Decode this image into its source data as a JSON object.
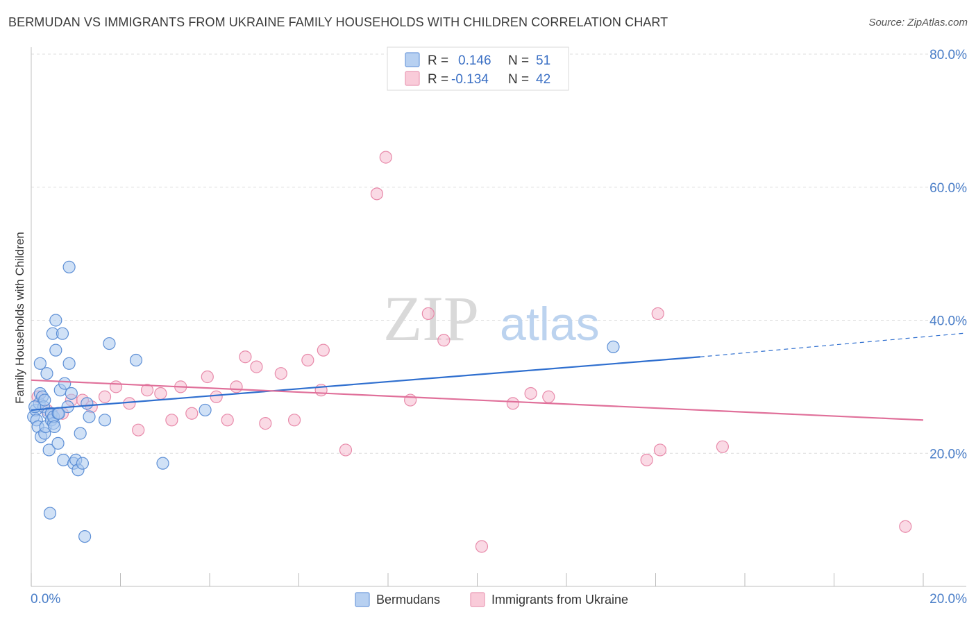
{
  "title": "BERMUDAN VS IMMIGRANTS FROM UKRAINE FAMILY HOUSEHOLDS WITH CHILDREN CORRELATION CHART",
  "source": "Source: ZipAtlas.com",
  "watermark": {
    "zip": "ZIP",
    "atlas": "atlas"
  },
  "legend": {
    "r_label": "R =",
    "n_label": "N =",
    "series": [
      {
        "r": "0.146",
        "n": "51"
      },
      {
        "r": "-0.134",
        "n": "42"
      }
    ]
  },
  "bottom_legend": [
    "Bermudans",
    "Immigrants from Ukraine"
  ],
  "chart_data": {
    "type": "scatter",
    "title": "BERMUDAN VS IMMIGRANTS FROM UKRAINE FAMILY HOUSEHOLDS WITH CHILDREN CORRELATION CHART",
    "xlabel": "",
    "ylabel": "Family Households with Children",
    "xlim": [
      0,
      20
    ],
    "ylim": [
      0,
      80
    ],
    "x_tick_labels": [
      "0.0%",
      "20.0%"
    ],
    "y_tick_labels": [
      "20.0%",
      "40.0%",
      "60.0%",
      "80.0%"
    ],
    "y_ticks": [
      20,
      40,
      60,
      80
    ],
    "grid": true,
    "colors": {
      "bermudans_fill": "#a9c8ee",
      "bermudans_stroke": "#5d8fd6",
      "bermudans_line": "#2f6fcf",
      "ukraine_fill": "#f6bcd0",
      "ukraine_stroke": "#e88aaa",
      "ukraine_line": "#e0709a",
      "tick": "#4a7ec8",
      "grid": "#dddddd"
    },
    "series": [
      {
        "name": "Bermudans",
        "trend": {
          "x_start": 0,
          "y_start": 26.5,
          "x_solid_end": 15.0,
          "y_solid_end": 34.5,
          "x_end": 20,
          "y_end": 37.5
        },
        "points": [
          [
            0.05,
            25.5
          ],
          [
            0.1,
            26.5
          ],
          [
            0.12,
            25.0
          ],
          [
            0.15,
            24.0
          ],
          [
            0.18,
            27.5
          ],
          [
            0.2,
            29.0
          ],
          [
            0.2,
            33.5
          ],
          [
            0.22,
            22.5
          ],
          [
            0.25,
            28.5
          ],
          [
            0.28,
            27.0
          ],
          [
            0.3,
            23.0
          ],
          [
            0.32,
            24.0
          ],
          [
            0.35,
            32.0
          ],
          [
            0.38,
            26.0
          ],
          [
            0.4,
            20.5
          ],
          [
            0.42,
            11.0
          ],
          [
            0.45,
            26.0
          ],
          [
            0.45,
            25.0
          ],
          [
            0.48,
            38.0
          ],
          [
            0.5,
            24.5
          ],
          [
            0.5,
            25.5
          ],
          [
            0.52,
            24.0
          ],
          [
            0.55,
            40.0
          ],
          [
            0.55,
            35.5
          ],
          [
            0.6,
            26.0
          ],
          [
            0.6,
            21.5
          ],
          [
            0.62,
            26.0
          ],
          [
            0.65,
            29.5
          ],
          [
            0.7,
            38.0
          ],
          [
            0.72,
            19.0
          ],
          [
            0.75,
            30.5
          ],
          [
            0.82,
            27.0
          ],
          [
            0.85,
            33.5
          ],
          [
            0.85,
            48.0
          ],
          [
            0.9,
            29.0
          ],
          [
            0.95,
            18.5
          ],
          [
            1.0,
            19.0
          ],
          [
            1.05,
            17.5
          ],
          [
            1.1,
            23.0
          ],
          [
            1.15,
            18.5
          ],
          [
            1.2,
            7.5
          ],
          [
            1.25,
            27.5
          ],
          [
            1.3,
            25.5
          ],
          [
            1.65,
            25.0
          ],
          [
            1.75,
            36.5
          ],
          [
            2.35,
            34.0
          ],
          [
            2.95,
            18.5
          ],
          [
            3.9,
            26.5
          ],
          [
            13.05,
            36.0
          ],
          [
            0.3,
            28.0
          ],
          [
            0.08,
            27.0
          ]
        ]
      },
      {
        "name": "Immigrants from Ukraine",
        "trend": {
          "x_start": 0,
          "y_start": 31.0,
          "x_end": 20,
          "y_end": 25.0
        },
        "points": [
          [
            0.15,
            28.5
          ],
          [
            0.35,
            26.5
          ],
          [
            0.7,
            26.0
          ],
          [
            0.9,
            28.0
          ],
          [
            1.15,
            28.0
          ],
          [
            1.35,
            27.0
          ],
          [
            1.65,
            28.5
          ],
          [
            1.9,
            30.0
          ],
          [
            2.2,
            27.5
          ],
          [
            2.4,
            23.5
          ],
          [
            2.6,
            29.5
          ],
          [
            2.9,
            29.0
          ],
          [
            3.15,
            25.0
          ],
          [
            3.35,
            30.0
          ],
          [
            3.6,
            26.0
          ],
          [
            3.95,
            31.5
          ],
          [
            4.15,
            28.5
          ],
          [
            4.4,
            25.0
          ],
          [
            4.6,
            30.0
          ],
          [
            4.8,
            34.5
          ],
          [
            5.05,
            33.0
          ],
          [
            5.25,
            24.5
          ],
          [
            5.6,
            32.0
          ],
          [
            5.9,
            25.0
          ],
          [
            6.2,
            34.0
          ],
          [
            6.5,
            29.5
          ],
          [
            6.55,
            35.5
          ],
          [
            7.05,
            20.5
          ],
          [
            7.75,
            59.0
          ],
          [
            7.95,
            64.5
          ],
          [
            8.5,
            28.0
          ],
          [
            8.9,
            41.0
          ],
          [
            9.25,
            37.0
          ],
          [
            10.1,
            6.0
          ],
          [
            10.8,
            27.5
          ],
          [
            11.2,
            29.0
          ],
          [
            11.6,
            28.5
          ],
          [
            13.8,
            19.0
          ],
          [
            14.05,
            41.0
          ],
          [
            14.1,
            20.5
          ],
          [
            15.5,
            21.0
          ],
          [
            19.6,
            9.0
          ]
        ]
      }
    ]
  }
}
